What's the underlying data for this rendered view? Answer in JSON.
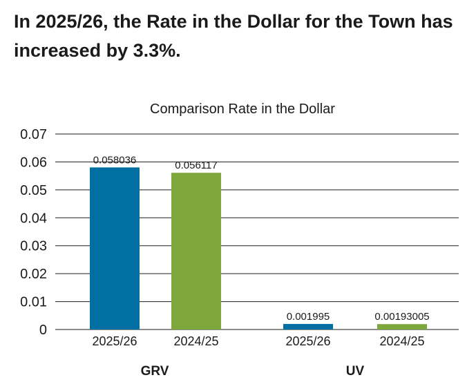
{
  "headline": "In 2025/26, the Rate in the Dollar for the Town has increased by 3.3%.",
  "chart_data": {
    "type": "bar",
    "title": "Comparison Rate in the Dollar",
    "ylim": [
      0,
      0.07
    ],
    "yticks": [
      "0.07",
      "0.06",
      "0.05",
      "0.04",
      "0.03",
      "0.02",
      "0.01",
      "0"
    ],
    "ytick_values": [
      0.07,
      0.06,
      0.05,
      0.04,
      0.03,
      0.02,
      0.01,
      0
    ],
    "grid": true,
    "bars": [
      {
        "group": "GRV",
        "category": "2025/26",
        "value": 0.058036,
        "label": "0.058036",
        "color": "#0070a3"
      },
      {
        "group": "GRV",
        "category": "2024/25",
        "value": 0.056117,
        "label": "0.056117",
        "color": "#7ea83b"
      },
      {
        "group": "UV",
        "category": "2025/26",
        "value": 0.001995,
        "label": "0.001995",
        "color": "#0070a3"
      },
      {
        "group": "UV",
        "category": "2024/25",
        "value": 0.00193005,
        "label": "0.00193005",
        "color": "#7ea83b"
      }
    ],
    "groups": [
      "GRV",
      "UV"
    ]
  }
}
